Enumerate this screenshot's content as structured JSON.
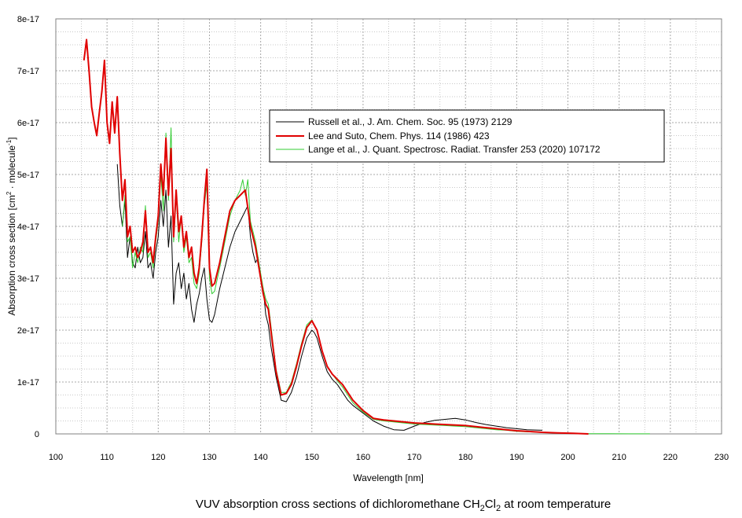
{
  "chart_data": {
    "type": "line",
    "title": "",
    "caption": {
      "prefix": "VUV absorption cross sections of dichloromethane CH",
      "sub1": "2",
      "mid": "Cl",
      "sub2": "2",
      "suffix": " at room temperature"
    },
    "xlabel": "Wavelength [nm]",
    "ylabel": {
      "main": "Absorption cross section [cm",
      "sup1": "2",
      "mid": " · molecule",
      "sup2": "-1",
      "end": "]"
    },
    "xlim": [
      100,
      230
    ],
    "ylim": [
      0,
      8e-17
    ],
    "x_ticks": [
      "100",
      "110",
      "120",
      "130",
      "140",
      "150",
      "160",
      "170",
      "180",
      "190",
      "200",
      "210",
      "220",
      "230"
    ],
    "y_ticks": [
      "0",
      "1e-17",
      "2e-17",
      "3e-17",
      "4e-17",
      "5e-17",
      "6e-17",
      "7e-17",
      "8e-17"
    ],
    "grid": true,
    "legend_placement": "upper-right",
    "series": [
      {
        "name": "Russell et al., J. Am. Chem. Soc. 95 (1973) 2129",
        "color": "#000000",
        "x": [
          112,
          112.5,
          113,
          113.5,
          114,
          114.5,
          115,
          115.5,
          116,
          116.5,
          117,
          117.5,
          118,
          118.5,
          119,
          119.5,
          120,
          120.5,
          121,
          121.5,
          122,
          122.5,
          123,
          123.5,
          124,
          124.5,
          125,
          125.5,
          126,
          126.5,
          127,
          127.5,
          128,
          128.5,
          129,
          129.5,
          130,
          130.5,
          131,
          132,
          133,
          134,
          135,
          136,
          137,
          137.5,
          138,
          138.5,
          139,
          139.5,
          140,
          140.5,
          141,
          141.5,
          142,
          143,
          144,
          145,
          146,
          147,
          148,
          149,
          150,
          150.5,
          151,
          152,
          153,
          154,
          155,
          156,
          157,
          158,
          160,
          162,
          164,
          166,
          168,
          170,
          172,
          174,
          176,
          178,
          180,
          182,
          184,
          186,
          188,
          190,
          192,
          195
        ],
        "values": [
          5.2e-17,
          4.4e-17,
          4e-17,
          4.5e-17,
          3.4e-17,
          3.8e-17,
          3.3e-17,
          3.2e-17,
          3.6e-17,
          3.3e-17,
          3.4e-17,
          3.9e-17,
          3.2e-17,
          3.3e-17,
          3e-17,
          3.5e-17,
          3.8e-17,
          4.5e-17,
          4e-17,
          4.7e-17,
          3.6e-17,
          4.2e-17,
          2.5e-17,
          3.1e-17,
          3.3e-17,
          2.8e-17,
          3.1e-17,
          2.6e-17,
          2.9e-17,
          2.4e-17,
          2.15e-17,
          2.5e-17,
          2.7e-17,
          3e-17,
          3.2e-17,
          2.6e-17,
          2.2e-17,
          2.15e-17,
          2.3e-17,
          2.8e-17,
          3.2e-17,
          3.6e-17,
          3.9e-17,
          4.1e-17,
          4.3e-17,
          4.4e-17,
          3.8e-17,
          3.5e-17,
          3.3e-17,
          3.4e-17,
          3e-17,
          2.8e-17,
          2.3e-17,
          2.1e-17,
          1.7e-17,
          1.1e-17,
          6.5e-18,
          6.2e-18,
          8e-18,
          1.1e-17,
          1.5e-17,
          1.85e-17,
          2e-17,
          1.95e-17,
          1.85e-17,
          1.5e-17,
          1.2e-17,
          1.05e-17,
          9.5e-18,
          8e-18,
          6.5e-18,
          5.5e-18,
          4e-18,
          2.5e-18,
          1.5e-18,
          8e-19,
          7e-19,
          1.5e-18,
          2.2e-18,
          2.6e-18,
          2.8e-18,
          3e-18,
          2.7e-18,
          2.2e-18,
          1.8e-18,
          1.5e-18,
          1.2e-18,
          1e-18,
          8e-19,
          7e-19
        ]
      },
      {
        "name": "Lee and Suto, Chem. Phys. 114 (1986) 423",
        "color": "#e00000",
        "x": [
          105.5,
          106,
          106.5,
          107,
          107.5,
          108,
          108.5,
          109,
          109.5,
          110,
          110.5,
          111,
          111.5,
          112,
          112.5,
          113,
          113.5,
          114,
          114.5,
          115,
          115.5,
          116,
          116.5,
          117,
          117.5,
          118,
          118.5,
          119,
          119.5,
          120,
          120.5,
          121,
          121.5,
          122,
          122.5,
          123,
          123.5,
          124,
          124.5,
          125,
          125.5,
          126,
          126.5,
          127,
          127.5,
          128,
          128.5,
          129,
          129.5,
          130,
          130.5,
          131,
          132,
          133,
          134,
          135,
          136,
          137,
          138,
          139,
          140,
          140.5,
          141,
          141.5,
          142,
          143,
          144,
          145,
          146,
          147,
          148,
          149,
          150,
          151,
          152,
          153,
          154,
          155,
          156,
          157,
          158,
          160,
          162,
          164,
          166,
          168,
          170,
          172,
          174,
          176,
          178,
          180,
          182,
          184,
          186,
          188,
          190,
          192,
          195,
          198,
          201,
          204
        ],
        "values": [
          7.2e-17,
          7.6e-17,
          7e-17,
          6.3e-17,
          6e-17,
          5.75e-17,
          6.2e-17,
          6.6e-17,
          7.2e-17,
          6e-17,
          5.6e-17,
          6.4e-17,
          5.8e-17,
          6.5e-17,
          5.4e-17,
          4.5e-17,
          4.9e-17,
          3.8e-17,
          4e-17,
          3.5e-17,
          3.6e-17,
          3.4e-17,
          3.5e-17,
          3.7e-17,
          4.3e-17,
          3.5e-17,
          3.6e-17,
          3.3e-17,
          3.8e-17,
          4.2e-17,
          5.2e-17,
          4.6e-17,
          5.7e-17,
          4.6e-17,
          5.5e-17,
          3.8e-17,
          4.7e-17,
          3.9e-17,
          4.2e-17,
          3.6e-17,
          3.9e-17,
          3.4e-17,
          3.6e-17,
          3.1e-17,
          2.9e-17,
          3.2e-17,
          3.8e-17,
          4.5e-17,
          5.1e-17,
          3.2e-17,
          2.85e-17,
          2.9e-17,
          3.3e-17,
          3.8e-17,
          4.3e-17,
          4.5e-17,
          4.6e-17,
          4.7e-17,
          4e-17,
          3.6e-17,
          3e-17,
          2.7e-17,
          2.5e-17,
          2.4e-17,
          2e-17,
          1.2e-17,
          7.5e-18,
          7.8e-18,
          9.5e-18,
          1.3e-17,
          1.7e-17,
          2.05e-17,
          2.18e-17,
          2e-17,
          1.6e-17,
          1.3e-17,
          1.15e-17,
          1.05e-17,
          9.5e-18,
          8e-18,
          6.5e-18,
          4.5e-18,
          3e-18,
          2.7e-18,
          2.5e-18,
          2.3e-18,
          2.1e-18,
          2e-18,
          1.9e-18,
          1.8e-18,
          1.7e-18,
          1.6e-18,
          1.4e-18,
          1.2e-18,
          1e-18,
          8e-19,
          6e-19,
          5e-19,
          3e-19,
          2e-19,
          1e-19,
          0.0
        ]
      },
      {
        "name": "Lange et al., J. Quant. Spectrosc. Radiat. Transfer 253 (2020) 107172",
        "color": "#33cc33",
        "x": [
          113,
          113.5,
          114,
          114.5,
          115,
          115.5,
          116,
          116.5,
          117,
          117.5,
          118,
          118.5,
          119,
          119.5,
          120,
          120.5,
          121,
          121.5,
          122,
          122.5,
          123,
          123.5,
          124,
          124.5,
          125,
          125.5,
          126,
          126.5,
          127,
          127.5,
          128,
          128.5,
          129,
          129.5,
          130,
          130.5,
          131,
          132,
          133,
          134,
          135,
          136,
          136.5,
          137,
          137.5,
          138,
          139,
          140,
          140.5,
          141,
          141.5,
          142,
          143,
          144,
          145,
          146,
          147,
          148,
          149,
          150,
          150.5,
          151,
          152,
          153,
          154,
          155,
          156,
          157,
          158,
          160,
          162,
          164,
          166,
          168,
          170,
          172,
          174,
          176,
          178,
          180,
          182,
          184,
          186,
          188,
          190,
          192,
          195,
          198,
          201,
          204,
          208,
          212,
          216
        ],
        "values": [
          4e-17,
          4.6e-17,
          3.7e-17,
          3.8e-17,
          3.2e-17,
          3.5e-17,
          3.3e-17,
          3.6e-17,
          3.5e-17,
          4.4e-17,
          3.4e-17,
          3.5e-17,
          3.2e-17,
          3.7e-17,
          4.1e-17,
          5e-17,
          4.3e-17,
          5.8e-17,
          4.5e-17,
          5.9e-17,
          3.7e-17,
          4.6e-17,
          3.7e-17,
          4.2e-17,
          3.5e-17,
          3.8e-17,
          3.3e-17,
          3.4e-17,
          2.9e-17,
          2.8e-17,
          3.1e-17,
          3.7e-17,
          4.4e-17,
          4.8e-17,
          3e-17,
          2.7e-17,
          2.75e-17,
          3.2e-17,
          3.7e-17,
          4.2e-17,
          4.5e-17,
          4.7e-17,
          4.9e-17,
          4.6e-17,
          4.9e-17,
          4.1e-17,
          3.7e-17,
          3.1e-17,
          2.8e-17,
          2.6e-17,
          2.5e-17,
          2.1e-17,
          1.25e-17,
          8e-18,
          8e-18,
          1e-17,
          1.35e-17,
          1.75e-17,
          2.1e-17,
          2.2e-17,
          2.1e-17,
          2e-17,
          1.6e-17,
          1.3e-17,
          1.15e-17,
          1.02e-17,
          9e-18,
          7.5e-18,
          6e-18,
          4.2e-18,
          2.8e-18,
          2.5e-18,
          2.3e-18,
          2.1e-18,
          1.9e-18,
          1.8e-18,
          1.7e-18,
          1.6e-18,
          1.5e-18,
          1.4e-18,
          1.2e-18,
          1e-18,
          8e-19,
          7e-19,
          5e-19,
          4e-19,
          3e-19,
          2e-19,
          1e-19,
          5e-20,
          3e-20,
          2e-20,
          1e-20
        ]
      }
    ]
  }
}
